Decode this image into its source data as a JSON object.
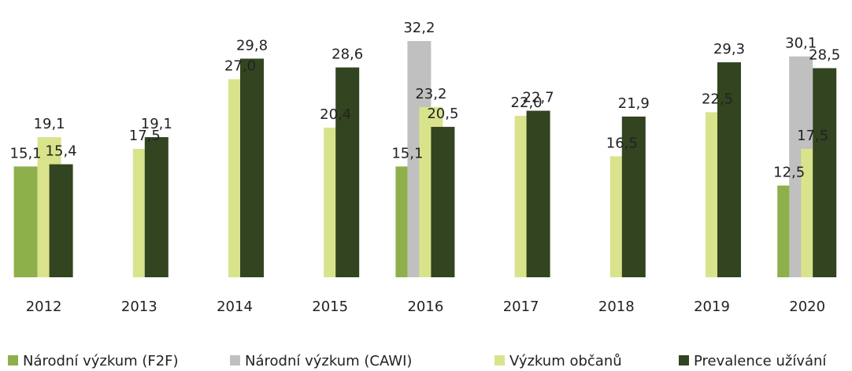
{
  "chart_data": {
    "type": "bar",
    "categories": [
      "2012",
      "2013",
      "2014",
      "2015",
      "2016",
      "2017",
      "2018",
      "2019",
      "2020"
    ],
    "series": [
      {
        "name": "Národní výzkum (F2F)",
        "color": "#8db04a",
        "values": [
          15.1,
          null,
          null,
          null,
          15.1,
          null,
          null,
          null,
          12.5
        ],
        "value_labels": [
          "15,1",
          null,
          null,
          null,
          "15,1",
          null,
          null,
          null,
          "12,5"
        ]
      },
      {
        "name": "Národní výzkum (CAWI)",
        "color": "#c0c0c0",
        "values": [
          null,
          null,
          null,
          null,
          32.2,
          null,
          null,
          null,
          30.1
        ],
        "value_labels": [
          null,
          null,
          null,
          null,
          "32,2",
          null,
          null,
          null,
          "30,1"
        ]
      },
      {
        "name": "Výzkum občanů",
        "color": "#d9e38c",
        "values": [
          19.1,
          17.5,
          27.0,
          20.4,
          23.2,
          22.0,
          16.5,
          22.5,
          17.5
        ],
        "value_labels": [
          "19,1",
          "17,5",
          "27,0",
          "20,4",
          "23,2",
          "22,0",
          "16,5",
          "22,5",
          "17,5"
        ]
      },
      {
        "name": "Prevalence užívání",
        "color": "#334420",
        "values": [
          15.4,
          19.1,
          29.8,
          28.6,
          20.5,
          22.7,
          21.9,
          29.3,
          28.5
        ],
        "value_labels": [
          "15,4",
          "19,1",
          "29,8",
          "28,6",
          "20,5",
          "22,7",
          "21,9",
          "29,3",
          "28,5"
        ]
      }
    ],
    "ylim": [
      0,
      35
    ],
    "legend": "bottom"
  }
}
